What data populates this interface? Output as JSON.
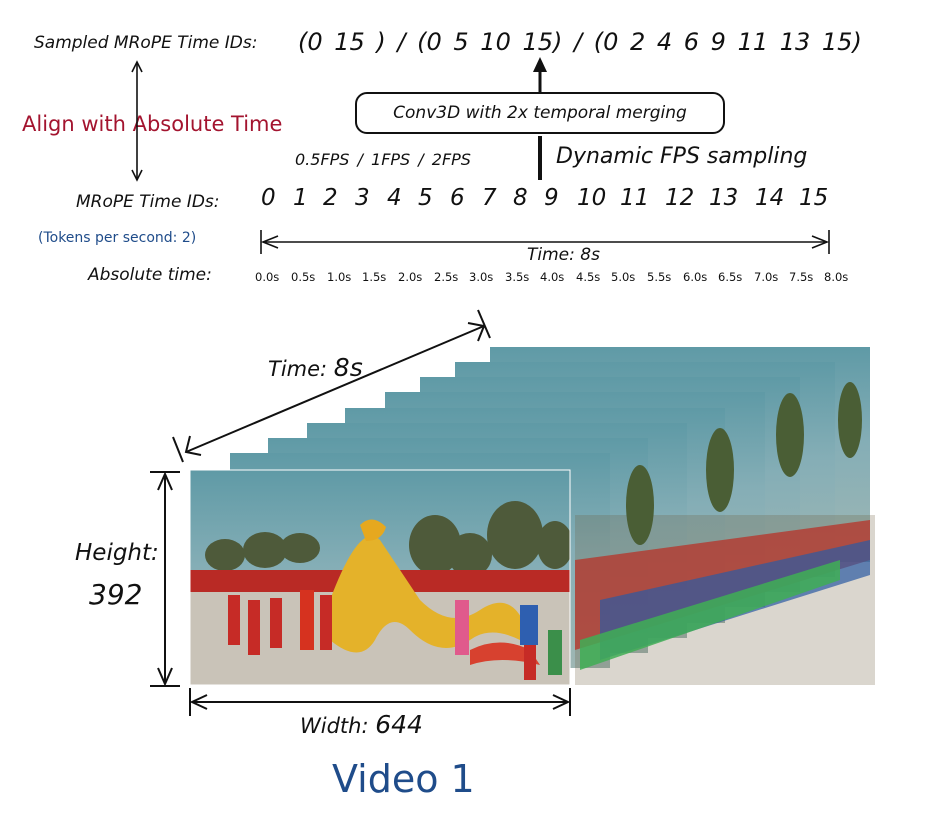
{
  "sampled": {
    "label": "Sampled MRoPE Time IDs:",
    "ids": "(0  15 )  /  (0  5  10  15)  /  (0  2  4  6  9  11  13  15)"
  },
  "align_text": "Align with Absolute Time",
  "conv_box": "Conv3D with 2x temporal merging",
  "fps_options": "0.5FPS  /  1FPS  /   2FPS",
  "dynamic_fps": "Dynamic FPS sampling",
  "mrope": {
    "label": "MRoPE Time IDs:",
    "ids": [
      "0",
      "1",
      "2",
      "3",
      "4",
      "5",
      "6",
      "7",
      "8",
      "9",
      "10",
      "11",
      "12",
      "13",
      "14",
      "15"
    ]
  },
  "tokens_per_second": "(Tokens per second: 2)",
  "time_span_label": "Time: 8s",
  "absolute": {
    "label": "Absolute time:",
    "times": [
      "0.0s",
      "0.5s",
      "1.0s",
      "1.5s",
      "2.0s",
      "2.5s",
      "3.0s",
      "3.5s",
      "4.0s",
      "4.5s",
      "5.0s",
      "5.5s",
      "6.0s",
      "6.5s",
      "7.0s",
      "7.5s",
      "8.0s"
    ]
  },
  "video": {
    "time_label": "Time: ",
    "time_value": "8s",
    "height_label": "Height:",
    "height_value": "392",
    "width_label": "Width: ",
    "width_value": "644",
    "title": "Video 1"
  },
  "colors": {
    "align_text": "#a3142f",
    "tokens_text": "#1f4c8a",
    "video_title": "#1f4c8a"
  }
}
